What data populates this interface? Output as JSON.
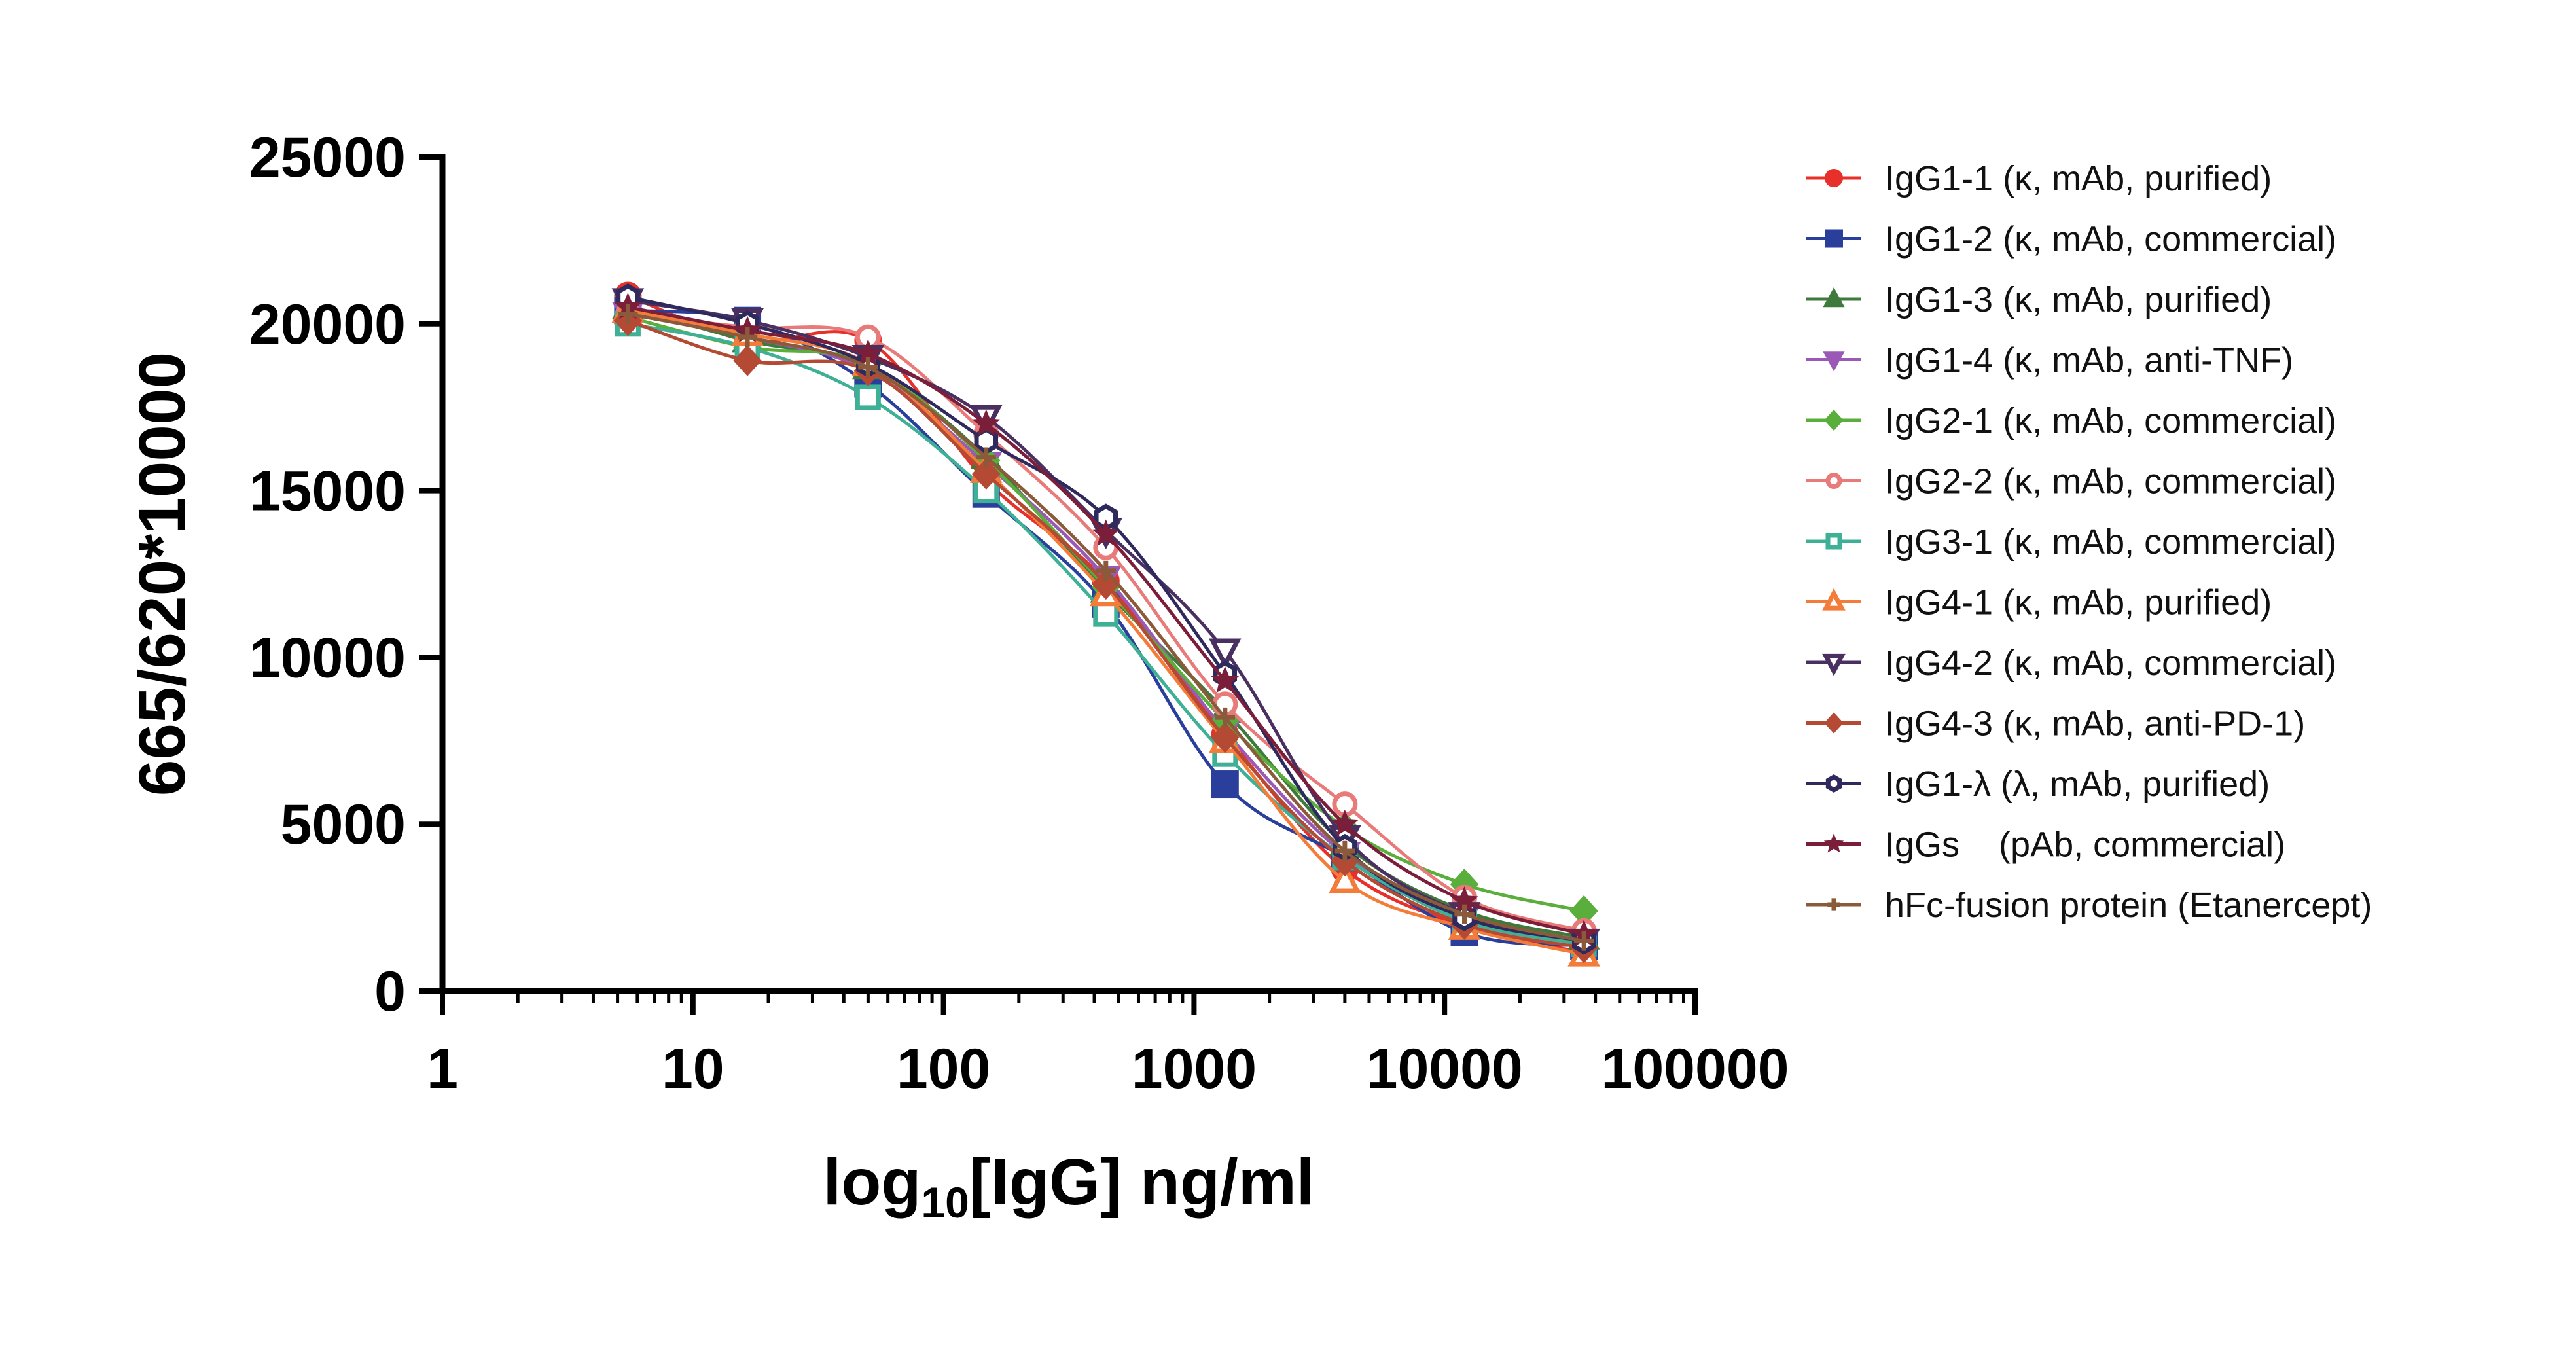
{
  "chart_data": {
    "type": "line",
    "title": "",
    "xlabel": {
      "main": "log",
      "sub": "10",
      "rest": "[IgG] ng/ml"
    },
    "ylabel": "665/620*10000",
    "xscale": "log",
    "xlim": [
      1,
      100000
    ],
    "ylim": [
      0,
      25000
    ],
    "xticks": [
      1,
      10,
      100,
      1000,
      10000,
      100000
    ],
    "xtick_labels": [
      "1",
      "10",
      "100",
      "1000",
      "10000",
      "100000"
    ],
    "yticks": [
      0,
      5000,
      10000,
      15000,
      20000,
      25000
    ],
    "ytick_labels": [
      "0",
      "5000",
      "10000",
      "15000",
      "20000",
      "25000"
    ],
    "legend_placement": "right",
    "x": [
      5.5,
      16.5,
      50,
      148,
      445,
      1330,
      4000,
      12000,
      36000
    ],
    "series": [
      {
        "name": "IgG1-1 (κ, mAb, purified)",
        "color": "#e8302a",
        "marker": "circle",
        "values": [
          20850,
          19500,
          19500,
          15300,
          12300,
          7700,
          3650,
          1950,
          1150
        ]
      },
      {
        "name": "IgG1-2 (κ, mAb, commercial)",
        "color": "#2a3f9c",
        "marker": "square",
        "values": [
          20400,
          20100,
          18200,
          14900,
          11600,
          6200,
          4000,
          1750,
          1350
        ]
      },
      {
        "name": "IgG1-3 (κ, mAb, purified)",
        "color": "#3f7a3c",
        "marker": "triangle-up",
        "values": [
          20500,
          19500,
          18700,
          16000,
          12000,
          8400,
          4400,
          2400,
          1600
        ]
      },
      {
        "name": "IgG1-4 (κ, mAb, anti-TNF)",
        "color": "#9b59b6",
        "marker": "triangle-down",
        "values": [
          20300,
          19600,
          18600,
          15800,
          12400,
          7800,
          4100,
          2200,
          1500
        ]
      },
      {
        "name": "IgG2-1 (κ, mAb, commercial)",
        "color": "#5aae3c",
        "marker": "diamond",
        "values": [
          20200,
          19300,
          18800,
          15900,
          12100,
          8100,
          4900,
          3200,
          2400
        ]
      },
      {
        "name": "IgG2-2 (κ, mAb, commercial)",
        "color": "#e97a7a",
        "marker": "circle-open",
        "values": [
          20300,
          19900,
          19600,
          16700,
          13300,
          8600,
          5600,
          2800,
          1800
        ]
      },
      {
        "name": "IgG3-1 (κ, mAb, commercial)",
        "color": "#3eb095",
        "marker": "square-open",
        "values": [
          20000,
          19300,
          17800,
          15000,
          11300,
          7100,
          4000,
          2100,
          1400
        ]
      },
      {
        "name": "IgG4-1 (κ, mAb, purified)",
        "color": "#f47c3a",
        "marker": "triangle-up-open",
        "values": [
          20400,
          19700,
          18800,
          15600,
          11900,
          7500,
          3300,
          1900,
          1100
        ]
      },
      {
        "name": "IgG4-2 (κ, mAb, commercial)",
        "color": "#4a3060",
        "marker": "triangle-down-open",
        "values": [
          20700,
          20100,
          19000,
          17200,
          13800,
          10200,
          4600,
          2300,
          1500
        ]
      },
      {
        "name": "IgG4-3 (κ, mAb, anti-PD-1)",
        "color": "#b44a34",
        "marker": "diamond",
        "values": [
          20100,
          18900,
          18600,
          15500,
          12200,
          7600,
          3900,
          2000,
          1300
        ]
      },
      {
        "name": "IgG1-λ (λ, mAb, purified)",
        "color": "#2e2a5e",
        "marker": "hexagon-open",
        "values": [
          20800,
          20000,
          18800,
          16500,
          14200,
          9500,
          4300,
          2200,
          1500
        ]
      },
      {
        "name": "IgGs    (pAb, commercial)",
        "color": "#7a1e3a",
        "marker": "star",
        "values": [
          20500,
          19800,
          19100,
          17000,
          13700,
          9300,
          5000,
          2700,
          1700
        ]
      },
      {
        "name": "hFc-fusion protein (Etanercept)",
        "color": "#8a5a3a",
        "marker": "plus",
        "values": [
          20300,
          19600,
          18700,
          16000,
          12600,
          8200,
          4200,
          2300,
          1500
        ]
      }
    ]
  }
}
